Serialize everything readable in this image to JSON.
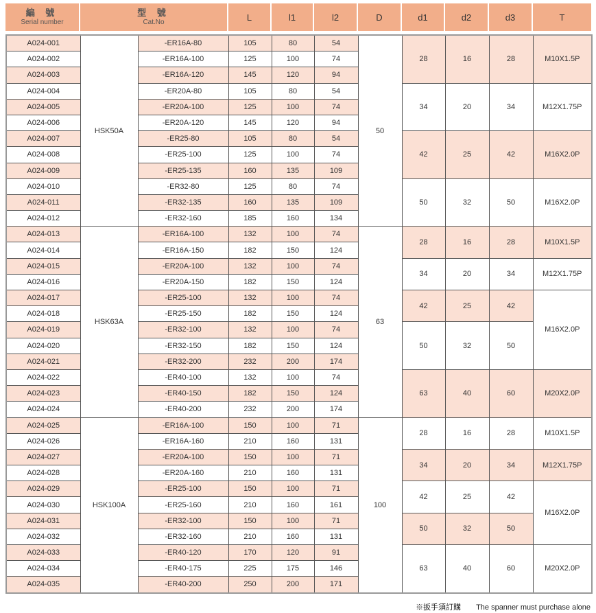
{
  "header": {
    "serial_zh": "編 號",
    "serial_en": "Serial number",
    "cat_zh": "型 號",
    "cat_en": "Cat.No",
    "L": "L",
    "l1": "l1",
    "l2": "l2",
    "D": "D",
    "d1": "d1",
    "d2": "d2",
    "d3": "d3",
    "T": "T"
  },
  "colors": {
    "header": "#f2ae8a",
    "shade": "#fbe0d4"
  },
  "rows": [
    [
      "A024-001",
      "-ER16A-80",
      "105",
      "80",
      "54"
    ],
    [
      "A024-002",
      "-ER16A-100",
      "125",
      "100",
      "74"
    ],
    [
      "A024-003",
      "-ER16A-120",
      "145",
      "120",
      "94"
    ],
    [
      "A024-004",
      "-ER20A-80",
      "105",
      "80",
      "54"
    ],
    [
      "A024-005",
      "-ER20A-100",
      "125",
      "100",
      "74"
    ],
    [
      "A024-006",
      "-ER20A-120",
      "145",
      "120",
      "94"
    ],
    [
      "A024-007",
      "-ER25-80",
      "105",
      "80",
      "54"
    ],
    [
      "A024-008",
      "-ER25-100",
      "125",
      "100",
      "74"
    ],
    [
      "A024-009",
      "-ER25-135",
      "160",
      "135",
      "109"
    ],
    [
      "A024-010",
      "-ER32-80",
      "125",
      "80",
      "74"
    ],
    [
      "A024-011",
      "-ER32-135",
      "160",
      "135",
      "109"
    ],
    [
      "A024-012",
      "-ER32-160",
      "185",
      "160",
      "134"
    ],
    [
      "A024-013",
      "-ER16A-100",
      "132",
      "100",
      "74"
    ],
    [
      "A024-014",
      "-ER16A-150",
      "182",
      "150",
      "124"
    ],
    [
      "A024-015",
      "-ER20A-100",
      "132",
      "100",
      "74"
    ],
    [
      "A024-016",
      "-ER20A-150",
      "182",
      "150",
      "124"
    ],
    [
      "A024-017",
      "-ER25-100",
      "132",
      "100",
      "74"
    ],
    [
      "A024-018",
      "-ER25-150",
      "182",
      "150",
      "124"
    ],
    [
      "A024-019",
      "-ER32-100",
      "132",
      "100",
      "74"
    ],
    [
      "A024-020",
      "-ER32-150",
      "182",
      "150",
      "124"
    ],
    [
      "A024-021",
      "-ER32-200",
      "232",
      "200",
      "174"
    ],
    [
      "A024-022",
      "-ER40-100",
      "132",
      "100",
      "74"
    ],
    [
      "A024-023",
      "-ER40-150",
      "182",
      "150",
      "124"
    ],
    [
      "A024-024",
      "-ER40-200",
      "232",
      "200",
      "174"
    ],
    [
      "A024-025",
      "-ER16A-100",
      "150",
      "100",
      "71"
    ],
    [
      "A024-026",
      "-ER16A-160",
      "210",
      "160",
      "131"
    ],
    [
      "A024-027",
      "-ER20A-100",
      "150",
      "100",
      "71"
    ],
    [
      "A024-028",
      "-ER20A-160",
      "210",
      "160",
      "131"
    ],
    [
      "A024-029",
      "-ER25-100",
      "150",
      "100",
      "71"
    ],
    [
      "A024-030",
      "-ER25-160",
      "210",
      "160",
      "161"
    ],
    [
      "A024-031",
      "-ER32-100",
      "150",
      "100",
      "71"
    ],
    [
      "A024-032",
      "-ER32-160",
      "210",
      "160",
      "131"
    ],
    [
      "A024-033",
      "-ER40-120",
      "170",
      "120",
      "91"
    ],
    [
      "A024-034",
      "-ER40-175",
      "225",
      "175",
      "146"
    ],
    [
      "A024-035",
      "-ER40-200",
      "250",
      "200",
      "171"
    ]
  ],
  "models": [
    {
      "model": "HSK50A",
      "D": "50",
      "rows": 12
    },
    {
      "model": "HSK63A",
      "D": "63",
      "rows": 12
    },
    {
      "model": "HSK100A",
      "D": "100",
      "rows": 11
    }
  ],
  "dgroups": [
    {
      "d1": "28",
      "d2": "16",
      "d3": "28",
      "rows": 3,
      "shaded": true
    },
    {
      "d1": "34",
      "d2": "20",
      "d3": "34",
      "rows": 3,
      "shaded": false
    },
    {
      "d1": "42",
      "d2": "25",
      "d3": "42",
      "rows": 3,
      "shaded": true
    },
    {
      "d1": "50",
      "d2": "32",
      "d3": "50",
      "rows": 3,
      "shaded": false
    },
    {
      "d1": "28",
      "d2": "16",
      "d3": "28",
      "rows": 2,
      "shaded": true
    },
    {
      "d1": "34",
      "d2": "20",
      "d3": "34",
      "rows": 2,
      "shaded": false
    },
    {
      "d1": "42",
      "d2": "25",
      "d3": "42",
      "rows": 2,
      "shaded": true
    },
    {
      "d1": "50",
      "d2": "32",
      "d3": "50",
      "rows": 3,
      "shaded": false
    },
    {
      "d1": "63",
      "d2": "40",
      "d3": "60",
      "rows": 3,
      "shaded": true
    },
    {
      "d1": "28",
      "d2": "16",
      "d3": "28",
      "rows": 2,
      "shaded": false
    },
    {
      "d1": "34",
      "d2": "20",
      "d3": "34",
      "rows": 2,
      "shaded": true
    },
    {
      "d1": "42",
      "d2": "25",
      "d3": "42",
      "rows": 2,
      "shaded": false
    },
    {
      "d1": "50",
      "d2": "32",
      "d3": "50",
      "rows": 2,
      "shaded": true
    },
    {
      "d1": "63",
      "d2": "40",
      "d3": "60",
      "rows": 3,
      "shaded": false
    }
  ],
  "tgroups": [
    {
      "T": "M10X1.5P",
      "rows": 3,
      "shaded": true
    },
    {
      "T": "M12X1.75P",
      "rows": 3,
      "shaded": false
    },
    {
      "T": "M16X2.0P",
      "rows": 3,
      "shaded": true
    },
    {
      "T": "M16X2.0P",
      "rows": 3,
      "shaded": false
    },
    {
      "T": "M10X1.5P",
      "rows": 2,
      "shaded": true
    },
    {
      "T": "M12X1.75P",
      "rows": 2,
      "shaded": false
    },
    {
      "T": "M16X2.0P",
      "rows": 5,
      "shaded": false
    },
    {
      "T": "M20X2.0P",
      "rows": 3,
      "shaded": true
    },
    {
      "T": "M10X1.5P",
      "rows": 2,
      "shaded": false
    },
    {
      "T": "M12X1.75P",
      "rows": 2,
      "shaded": true
    },
    {
      "T": "M16X2.0P",
      "rows": 4,
      "shaded": false
    },
    {
      "T": "M20X2.0P",
      "rows": 3,
      "shaded": false
    }
  ],
  "note": {
    "zh": "※扳手須訂購",
    "en": "The spanner must purchase alone"
  }
}
